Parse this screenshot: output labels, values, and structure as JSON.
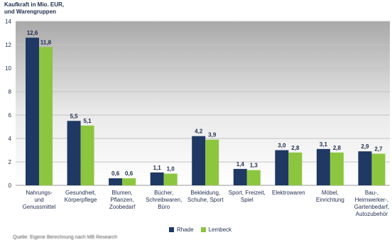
{
  "chart_data": {
    "type": "bar",
    "ylabel_lines": [
      "Kaufkraft in Mio. EUR,",
      "und Warengruppen"
    ],
    "ylim": [
      0,
      14
    ],
    "yticks": [
      0,
      2,
      4,
      6,
      8,
      10,
      12,
      14
    ],
    "grid": true,
    "legend_position": "bottom",
    "categories": [
      [
        "Nahrungs-",
        "und",
        "Genussmittel"
      ],
      [
        "Gesundheit,",
        "Körperpflege"
      ],
      [
        "Blumen,",
        "Pflanzen,",
        "Zoobedarf"
      ],
      [
        "Bücher,",
        "Schreibwaren,",
        "Büro"
      ],
      [
        "Bekleidung,",
        "Schuhe, Sport"
      ],
      [
        "Sport, Freizeit,",
        "Spiel"
      ],
      [
        "Elektrowaren"
      ],
      [
        "Möbel,",
        "Einrichtung"
      ],
      [
        "Bau-,",
        "Heimwerker-,",
        "Gartenbedarf,",
        "Autozubehör"
      ]
    ],
    "series": [
      {
        "name": "Rhade",
        "color": "#1f3864",
        "values": [
          12.6,
          5.5,
          0.6,
          1.1,
          4.2,
          1.4,
          3.0,
          3.1,
          2.9
        ],
        "labels": [
          "12,6",
          "5,5",
          "0,6",
          "1,1",
          "4,2",
          "1,4",
          "3,0",
          "3,1",
          "2,9"
        ]
      },
      {
        "name": "Lembeck",
        "color": "#8cc63f",
        "values": [
          11.8,
          5.1,
          0.6,
          1.0,
          3.9,
          1.3,
          2.8,
          2.8,
          2.7
        ],
        "labels": [
          "11,8",
          "5,1",
          "0,6",
          "1,0",
          "3,9",
          "1,3",
          "2,8",
          "2,8",
          "2,7"
        ]
      }
    ]
  },
  "footer": {
    "source_text": "Quelle: Eigene Berechnung nach MB Research"
  }
}
